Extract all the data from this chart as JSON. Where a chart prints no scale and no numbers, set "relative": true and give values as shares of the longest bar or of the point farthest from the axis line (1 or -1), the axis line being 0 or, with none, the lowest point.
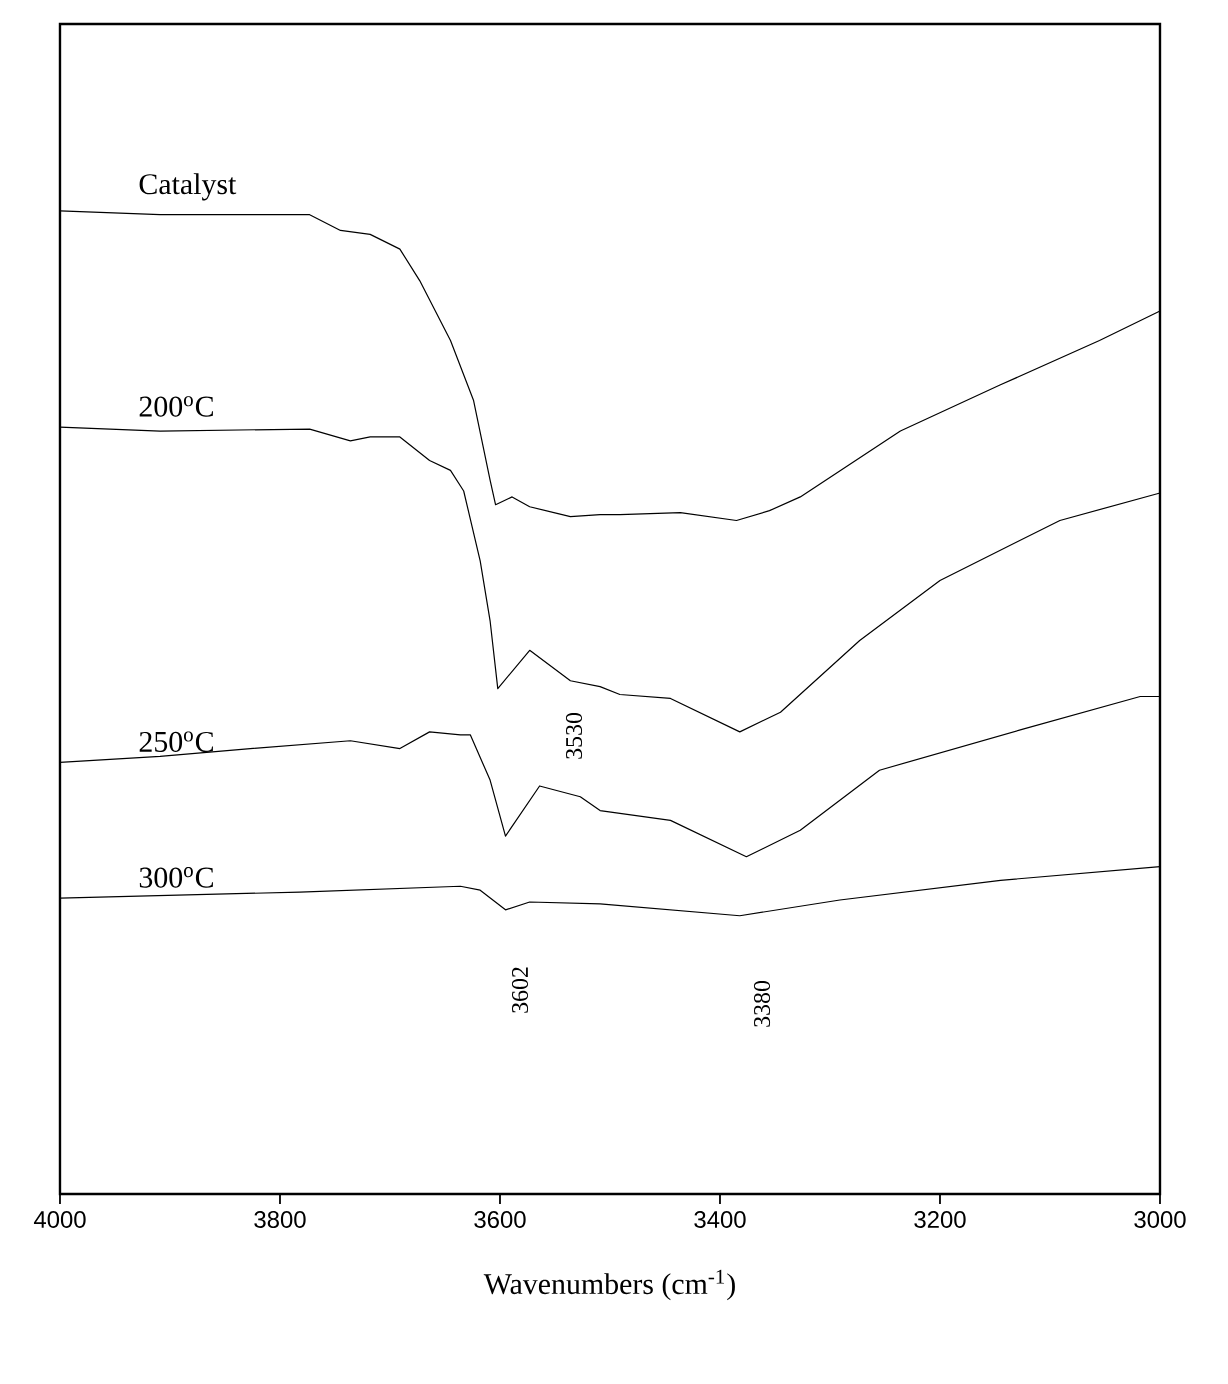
{
  "chart_data": {
    "type": "line",
    "relative": true,
    "xlabel": "Wavenumbers (cm$^{-1}$)",
    "xlim": [
      4000,
      3000
    ],
    "xticks": [
      4000,
      3800,
      3600,
      3400,
      3200,
      3000
    ],
    "series": [
      {
        "name": "Catalyst",
        "color": "#000000",
        "x": [
          4000,
          3909,
          3773,
          3745,
          3718,
          3691,
          3673,
          3645,
          3624,
          3609,
          3604,
          3589,
          3573,
          3536,
          3509,
          3491,
          3436,
          3385,
          3355,
          3327,
          3236,
          3145,
          3055,
          3000
        ],
        "values": [
          1.0,
          0.996,
          0.996,
          0.98,
          0.976,
          0.961,
          0.929,
          0.868,
          0.807,
          0.726,
          0.701,
          0.709,
          0.699,
          0.689,
          0.691,
          0.691,
          0.693,
          0.685,
          0.695,
          0.709,
          0.776,
          0.823,
          0.868,
          0.898
        ]
      },
      {
        "name": "200$^{o}$C",
        "color": "#000000",
        "x": [
          4000,
          3909,
          3773,
          3736,
          3718,
          3691,
          3664,
          3645,
          3633,
          3618,
          3609,
          3602,
          3573,
          3536,
          3509,
          3491,
          3445,
          3382,
          3345,
          3273,
          3200,
          3091,
          3000
        ],
        "values": [
          0.78,
          0.776,
          0.778,
          0.766,
          0.77,
          0.77,
          0.746,
          0.736,
          0.715,
          0.644,
          0.583,
          0.514,
          0.553,
          0.522,
          0.516,
          0.508,
          0.504,
          0.47,
          0.49,
          0.563,
          0.624,
          0.685,
          0.713
        ]
      },
      {
        "name": "250$^{o}$C",
        "color": "#000000",
        "x": [
          4000,
          3909,
          3827,
          3736,
          3691,
          3664,
          3636,
          3627,
          3609,
          3595,
          3564,
          3527,
          3509,
          3445,
          3376,
          3327,
          3255,
          3127,
          3018,
          3000
        ],
        "values": [
          0.439,
          0.445,
          0.453,
          0.461,
          0.453,
          0.47,
          0.467,
          0.467,
          0.421,
          0.364,
          0.415,
          0.404,
          0.39,
          0.38,
          0.343,
          0.37,
          0.431,
          0.472,
          0.506,
          0.506
        ]
      },
      {
        "name": "300$^{o}$C",
        "color": "#000000",
        "x": [
          4000,
          3782,
          3636,
          3618,
          3595,
          3573,
          3509,
          3382,
          3291,
          3145,
          3000
        ],
        "values": [
          0.301,
          0.307,
          0.313,
          0.309,
          0.289,
          0.297,
          0.295,
          0.283,
          0.299,
          0.319,
          0.333
        ]
      }
    ],
    "annotations": [
      "3530",
      "3602",
      "3380"
    ]
  }
}
